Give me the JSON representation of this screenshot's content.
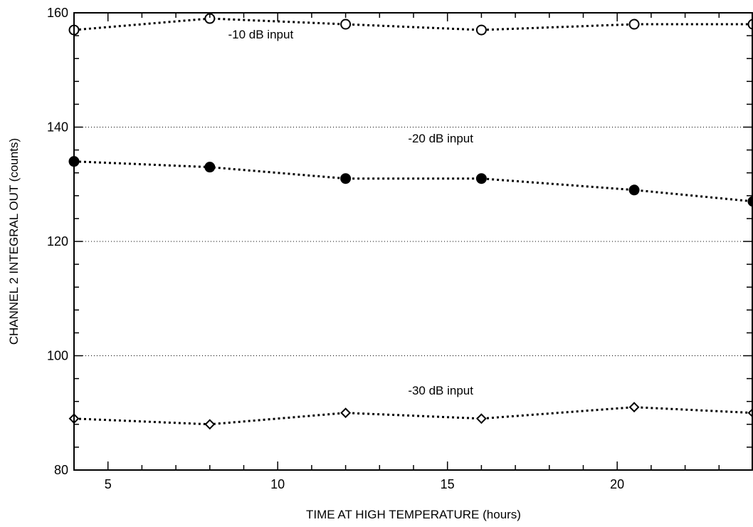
{
  "chart_data": {
    "type": "line",
    "xlabel": "TIME AT HIGH TEMPERATURE (hours)",
    "ylabel": "CHANNEL 2 INTEGRAL OUT (counts)",
    "xlim": [
      4,
      24
    ],
    "ylim": [
      80,
      160
    ],
    "x_ticks": [
      5,
      10,
      15,
      20
    ],
    "y_ticks": [
      80,
      100,
      120,
      140,
      160
    ],
    "grid": "horizontal dotted",
    "series": [
      {
        "x": [
          4,
          8,
          12,
          16,
          20.5,
          24
        ],
        "values": [
          157,
          159,
          158,
          157,
          158,
          158
        ],
        "marker": "open-circle"
      },
      {
        "x": [
          4,
          8,
          12,
          16,
          20.5,
          24
        ],
        "values": [
          134,
          133,
          131,
          131,
          129,
          127
        ],
        "marker": "filled-circle"
      },
      {
        "x": [
          4,
          8,
          12,
          16,
          20.5,
          24
        ],
        "values": [
          89,
          88,
          90,
          89,
          91,
          90
        ],
        "marker": "open-diamond"
      }
    ],
    "annotations": [
      {
        "text": "-10 dB input",
        "x": 9.5,
        "y": 155.5
      },
      {
        "text": "-20 dB input",
        "x": 14.8,
        "y": 137.3
      },
      {
        "text": "-30 dB input",
        "x": 14.8,
        "y": 93.2
      }
    ]
  }
}
